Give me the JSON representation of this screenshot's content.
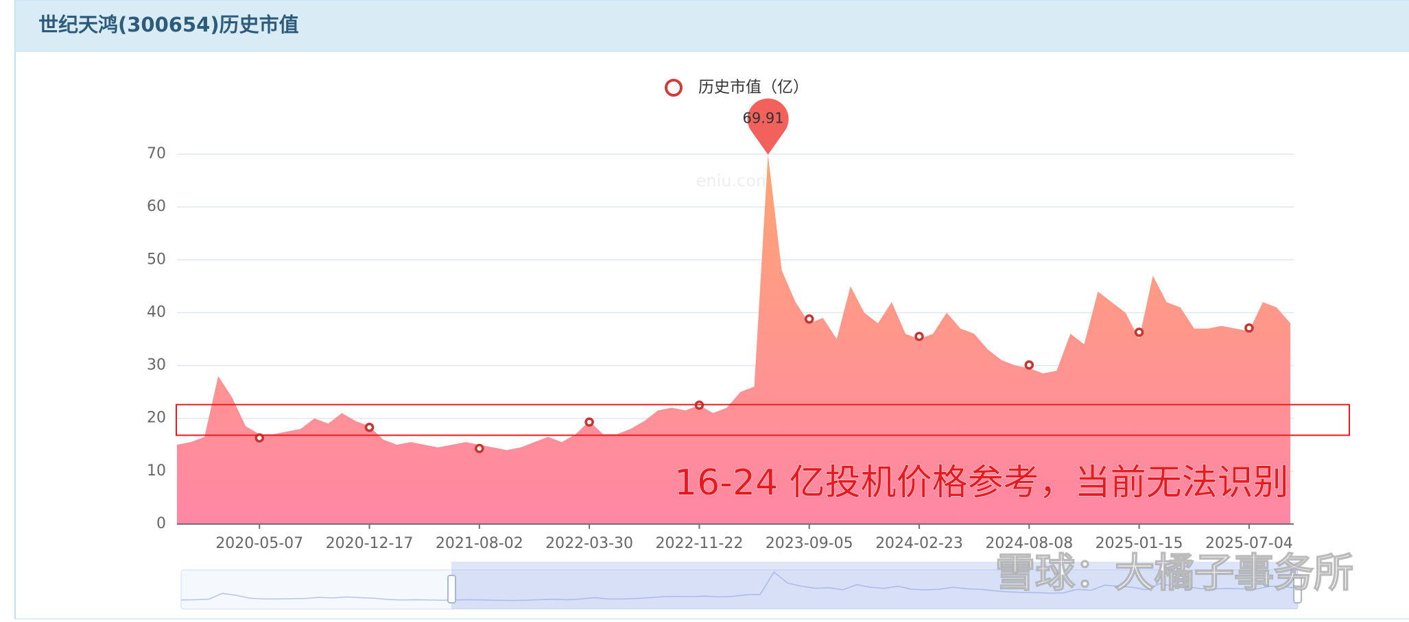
{
  "header": {
    "title": "世纪天鸿(300654)历史市值"
  },
  "chart_data": {
    "type": "area",
    "watermark": "eniu.com",
    "annotation": "16-24 亿投机价格参考，当前无法识别",
    "highlight_band": [
      16.8,
      22.6
    ],
    "credit": "雪球：大橘子事务所",
    "categories": [
      null,
      null,
      null,
      null,
      null,
      null,
      "2020-05-07",
      null,
      null,
      null,
      null,
      null,
      null,
      null,
      "2020-12-17",
      null,
      null,
      null,
      null,
      null,
      null,
      null,
      "2021-08-02",
      null,
      null,
      null,
      null,
      null,
      null,
      null,
      "2022-03-30",
      null,
      null,
      null,
      null,
      null,
      null,
      null,
      "2022-11-22",
      null,
      null,
      null,
      null,
      null,
      null,
      null,
      "2023-09-05",
      null,
      null,
      null,
      null,
      null,
      null,
      null,
      "2024-02-23",
      null,
      null,
      null,
      null,
      null,
      null,
      null,
      "2024-08-08",
      null,
      null,
      null,
      null,
      null,
      null,
      null,
      "2025-01-15",
      null,
      null,
      null,
      null,
      null,
      null,
      null,
      "2025-07-04",
      null,
      null,
      null
    ],
    "series": [
      {
        "name": "历史市值（亿）",
        "color": "#d03b3b",
        "values": [
          15,
          15.5,
          16.5,
          28,
          24,
          18.5,
          17,
          17,
          17.5,
          18,
          20,
          19,
          21,
          19.5,
          18.5,
          16,
          15,
          15.5,
          15,
          14.5,
          15,
          15.5,
          15,
          14.5,
          14,
          14.5,
          15.5,
          16.5,
          15.5,
          17,
          19.5,
          17,
          17,
          18,
          19.5,
          21.5,
          22,
          21.5,
          22.5,
          21,
          22,
          25,
          26,
          69.91,
          48,
          42,
          38,
          39,
          35,
          45,
          40,
          38,
          42,
          36,
          35,
          36,
          40,
          37,
          36,
          33,
          31,
          30,
          29.5,
          28.5,
          29,
          36,
          34,
          44,
          42,
          40,
          35,
          47,
          42,
          41,
          37,
          37,
          37.5,
          37,
          36.5,
          42,
          41,
          38
        ]
      }
    ],
    "markers": [
      null,
      null,
      null,
      null,
      null,
      null,
      16.3,
      null,
      null,
      null,
      null,
      null,
      null,
      null,
      18.3,
      null,
      null,
      null,
      null,
      null,
      null,
      null,
      14.3,
      null,
      null,
      null,
      null,
      null,
      null,
      null,
      19.3,
      null,
      null,
      null,
      null,
      null,
      null,
      null,
      22.5,
      null,
      null,
      null,
      null,
      null,
      null,
      null,
      38.8,
      null,
      null,
      null,
      null,
      null,
      null,
      null,
      35.5,
      null,
      null,
      null,
      null,
      null,
      null,
      null,
      30.1,
      null,
      null,
      null,
      null,
      null,
      null,
      null,
      36.3,
      null,
      null,
      null,
      null,
      null,
      null,
      null,
      37.1,
      null,
      null,
      null
    ],
    "ylim": [
      0,
      70
    ],
    "yticks": [
      0,
      10,
      20,
      30,
      40,
      50,
      60,
      70
    ],
    "grid": true
  }
}
